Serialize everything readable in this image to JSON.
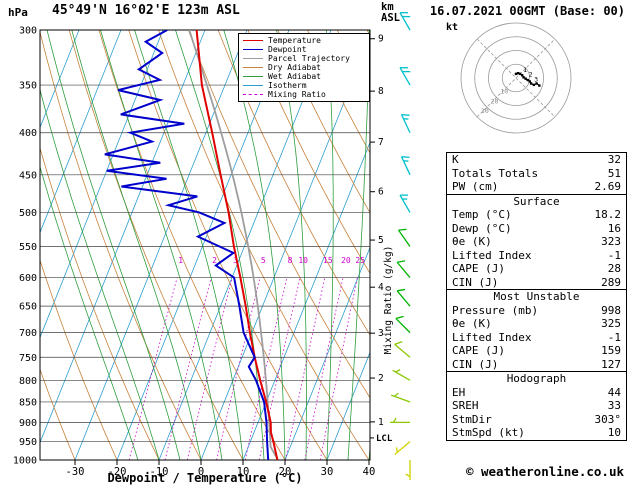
{
  "header": {
    "pressure_unit": "hPa",
    "title": "45°49'N 16°02'E 123m ASL",
    "km_label": "km",
    "asl_label": "ASL",
    "datetime": "16.07.2021 00GMT (Base: 00)"
  },
  "legend": {
    "items": [
      {
        "label": "Temperature",
        "color": "#e00000",
        "dashed": false
      },
      {
        "label": "Dewpoint",
        "color": "#0000cc",
        "dashed": false
      },
      {
        "label": "Parcel Trajectory",
        "color": "#9e9e9e",
        "dashed": false
      },
      {
        "label": "Dry Adiabat",
        "color": "#c8823c",
        "dashed": false
      },
      {
        "label": "Wet Adiabat",
        "color": "#2f9e3f",
        "dashed": false
      },
      {
        "label": "Isotherm",
        "color": "#2f9fd0",
        "dashed": false
      },
      {
        "label": "Mixing Ratio",
        "color": "#cc00cc",
        "dashed": true
      }
    ]
  },
  "axes": {
    "pressure_ticks": [
      300,
      350,
      400,
      450,
      500,
      550,
      600,
      650,
      700,
      750,
      800,
      850,
      900,
      950,
      1000
    ],
    "temp_ticks": [
      -30,
      -20,
      -10,
      0,
      10,
      20,
      30,
      40
    ],
    "km_ticks": [
      1,
      2,
      3,
      4,
      5,
      6,
      7,
      8,
      9
    ],
    "xlabel": "Dewpoint / Temperature (°C)",
    "mixing_ratio_axis_label": "Mixing Ratio (g/kg)",
    "lcl_label": "LCL",
    "lcl_pressure": 940,
    "pressure_line_color": "#404040"
  },
  "chart_data": {
    "type": "line",
    "title": "Skew-T log-P sounding",
    "pressure_range_hpa": [
      300,
      1000
    ],
    "surface_temp_axis_range_c": [
      -35,
      42
    ],
    "isotherms_c": {
      "min": -80,
      "max": 40,
      "step": 10
    },
    "dry_adiabats_c": {
      "min": -30,
      "max": 110,
      "step": 10
    },
    "wet_adiabats_c": {
      "min": -15,
      "max": 40,
      "step": 5
    },
    "mixing_ratio_lines_gkg": [
      1,
      2,
      3,
      5,
      8,
      10,
      15,
      20,
      25
    ],
    "temperature_profile_p_t": [
      [
        1000,
        18.2
      ],
      [
        950,
        15.5
      ],
      [
        925,
        14
      ],
      [
        900,
        13
      ],
      [
        850,
        10
      ],
      [
        800,
        6.5
      ],
      [
        750,
        3
      ],
      [
        700,
        -0.5
      ],
      [
        650,
        -4
      ],
      [
        600,
        -8
      ],
      [
        550,
        -12.5
      ],
      [
        500,
        -17
      ],
      [
        450,
        -22.5
      ],
      [
        400,
        -28.5
      ],
      [
        350,
        -35.5
      ],
      [
        300,
        -42
      ]
    ],
    "dewpoint_profile_p_t": [
      [
        1000,
        16
      ],
      [
        950,
        14
      ],
      [
        900,
        12
      ],
      [
        850,
        9.5
      ],
      [
        800,
        5.5
      ],
      [
        770,
        2.5
      ],
      [
        750,
        3
      ],
      [
        700,
        -2
      ],
      [
        650,
        -5.5
      ],
      [
        600,
        -9.5
      ],
      [
        580,
        -15
      ],
      [
        560,
        -12
      ],
      [
        535,
        -22
      ],
      [
        515,
        -17
      ],
      [
        500,
        -24
      ],
      [
        490,
        -32
      ],
      [
        478,
        -26
      ],
      [
        465,
        -45
      ],
      [
        455,
        -35
      ],
      [
        445,
        -50
      ],
      [
        435,
        -38
      ],
      [
        425,
        -52
      ],
      [
        410,
        -42
      ],
      [
        400,
        -48
      ],
      [
        390,
        -36
      ],
      [
        380,
        -52
      ],
      [
        365,
        -44
      ],
      [
        355,
        -55
      ],
      [
        345,
        -46
      ],
      [
        335,
        -52
      ],
      [
        320,
        -48
      ],
      [
        310,
        -53
      ],
      [
        300,
        -49
      ]
    ],
    "parcel": {
      "surface_pressure": 998,
      "surface_temp": 18.2,
      "surface_dewp": 16
    },
    "wind_barbs": [
      {
        "p": 300,
        "dir": 330,
        "spd": 20,
        "color": "#00c0cc"
      },
      {
        "p": 350,
        "dir": 330,
        "spd": 20,
        "color": "#00c0cc"
      },
      {
        "p": 400,
        "dir": 335,
        "spd": 15,
        "color": "#00c0cc"
      },
      {
        "p": 450,
        "dir": 335,
        "spd": 15,
        "color": "#00c0cc"
      },
      {
        "p": 500,
        "dir": 330,
        "spd": 15,
        "color": "#00c0cc"
      },
      {
        "p": 550,
        "dir": 325,
        "spd": 10,
        "color": "#00b400"
      },
      {
        "p": 600,
        "dir": 320,
        "spd": 10,
        "color": "#00b400"
      },
      {
        "p": 650,
        "dir": 320,
        "spd": 10,
        "color": "#00b400"
      },
      {
        "p": 700,
        "dir": 315,
        "spd": 10,
        "color": "#00b400"
      },
      {
        "p": 750,
        "dir": 310,
        "spd": 10,
        "color": "#8cc800"
      },
      {
        "p": 800,
        "dir": 300,
        "spd": 5,
        "color": "#8cc800"
      },
      {
        "p": 850,
        "dir": 290,
        "spd": 5,
        "color": "#8cc800"
      },
      {
        "p": 900,
        "dir": 270,
        "spd": 5,
        "color": "#8cc800"
      },
      {
        "p": 950,
        "dir": 230,
        "spd": 5,
        "color": "#d2d200"
      },
      {
        "p": 1000,
        "dir": 180,
        "spd": 5,
        "color": "#d2d200"
      }
    ]
  },
  "hodograph": {
    "unit_label": "kt",
    "ring_values_kt": [
      10,
      20,
      30,
      40
    ],
    "ring_color": "#999999",
    "trace_color": "#000000",
    "trace_uv_kt": [
      [
        0,
        3
      ],
      [
        1.5,
        3.5
      ],
      [
        3,
        3
      ],
      [
        4.5,
        2
      ],
      [
        5.5,
        0.5
      ],
      [
        7,
        -0.5
      ],
      [
        8.5,
        -1.5
      ],
      [
        10,
        -2.5
      ],
      [
        11,
        -4
      ],
      [
        13,
        -5
      ],
      [
        15,
        -4
      ],
      [
        17,
        -5.5
      ]
    ],
    "trace_km_labels": [
      {
        "label": "1",
        "u": 3,
        "v": 3
      },
      {
        "label": "2",
        "u": 7,
        "v": -0.5
      },
      {
        "label": "3",
        "u": 11,
        "v": -4
      }
    ]
  },
  "table": {
    "rows": [
      {
        "type": "row",
        "label": "K",
        "value": "32"
      },
      {
        "type": "row",
        "label": "Totals Totals",
        "value": "51"
      },
      {
        "type": "row",
        "label": "PW (cm)",
        "value": "2.69"
      },
      {
        "type": "header",
        "label": "Surface"
      },
      {
        "type": "row",
        "label": "Temp (°C)",
        "value": "18.2"
      },
      {
        "type": "row",
        "label": "Dewp (°C)",
        "value": "16"
      },
      {
        "type": "row",
        "label": "θe (K)",
        "value": "323"
      },
      {
        "type": "row",
        "label": "Lifted Index",
        "value": "-1"
      },
      {
        "type": "row",
        "label": "CAPE (J)",
        "value": "28"
      },
      {
        "type": "row",
        "label": "CIN (J)",
        "value": "289"
      },
      {
        "type": "header",
        "label": "Most Unstable"
      },
      {
        "type": "row",
        "label": "Pressure (mb)",
        "value": "998"
      },
      {
        "type": "row",
        "label": "θe (K)",
        "value": "325"
      },
      {
        "type": "row",
        "label": "Lifted Index",
        "value": "-1"
      },
      {
        "type": "row",
        "label": "CAPE (J)",
        "value": "159"
      },
      {
        "type": "row",
        "label": "CIN (J)",
        "value": "127"
      },
      {
        "type": "header",
        "label": "Hodograph"
      },
      {
        "type": "row",
        "label": "EH",
        "value": "44"
      },
      {
        "type": "row",
        "label": "SREH",
        "value": "33"
      },
      {
        "type": "row",
        "label": "StmDir",
        "value": "303°"
      },
      {
        "type": "row",
        "label": "StmSpd (kt)",
        "value": "10"
      }
    ]
  },
  "footer": {
    "copyright": "© weatheronline.co.uk"
  }
}
